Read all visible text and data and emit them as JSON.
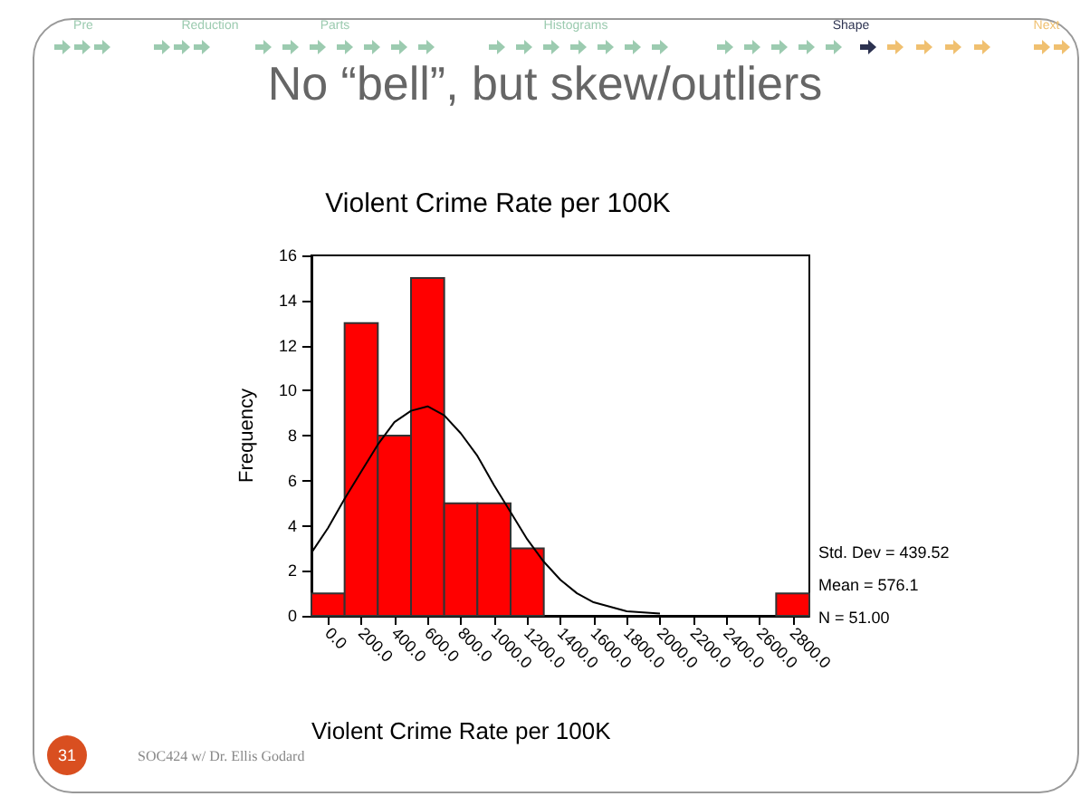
{
  "chart_data": {
    "type": "histogram",
    "title": "No “bell”, but skew/outliers",
    "subtitle": "Violent Crime Rate per 100K",
    "xlabel": "Violent Crime Rate per 100K",
    "ylabel": "Frequency",
    "bins": [
      -100,
      100,
      300,
      500,
      700,
      900,
      1100,
      1300,
      1500,
      1700,
      1900,
      2100,
      2300,
      2500,
      2700,
      2900
    ],
    "values": [
      1,
      13,
      8,
      15,
      5,
      5,
      3,
      0,
      0,
      0,
      0,
      0,
      0,
      0,
      1
    ],
    "color": "#ff0000",
    "series": [
      {
        "type": "line",
        "color": "#000000",
        "x": [
          -100,
          0,
          100,
          200,
          300,
          400,
          500,
          600,
          700,
          800,
          900,
          1000,
          1100,
          1200,
          1300,
          1400,
          1500,
          1600,
          1800,
          2000
        ],
        "values": [
          2.8,
          3.9,
          5.2,
          6.4,
          7.6,
          8.6,
          9.1,
          9.3,
          8.9,
          8.1,
          7.1,
          5.8,
          4.6,
          3.4,
          2.4,
          1.6,
          1.0,
          0.6,
          0.2,
          0.1
        ]
      }
    ],
    "xlim": [
      -100,
      2900
    ],
    "xticks": [
      {
        "value": 0,
        "label": "0.0"
      },
      {
        "value": 200,
        "label": "200.0"
      },
      {
        "value": 400,
        "label": "400.0"
      },
      {
        "value": 600,
        "label": "600.0"
      },
      {
        "value": 800,
        "label": "800.0"
      },
      {
        "value": 1000,
        "label": "1000.0"
      },
      {
        "value": 1200,
        "label": "1200.0"
      },
      {
        "value": 1400,
        "label": "1400.0"
      },
      {
        "value": 1600,
        "label": "1600.0"
      },
      {
        "value": 1800,
        "label": "1800.0"
      },
      {
        "value": 2000,
        "label": "2000.0"
      },
      {
        "value": 2200,
        "label": "2200.0"
      },
      {
        "value": 2400,
        "label": "2400.0"
      },
      {
        "value": 2600,
        "label": "2600.0"
      },
      {
        "value": 2800,
        "label": "2800.0"
      }
    ],
    "ylim": [
      0,
      16
    ],
    "yticks": [
      0,
      2,
      4,
      6,
      8,
      10,
      12,
      14,
      16
    ],
    "grid": false,
    "annotations": [
      "Pre",
      "Reduction",
      "Parts",
      "Histograms",
      "Shape",
      "Next",
      "Std. Dev = 439.52",
      "Mean = 576.1",
      "N = 51.00",
      "31",
      "SOC424 w/ Dr. Ellis Godard"
    ]
  }
}
